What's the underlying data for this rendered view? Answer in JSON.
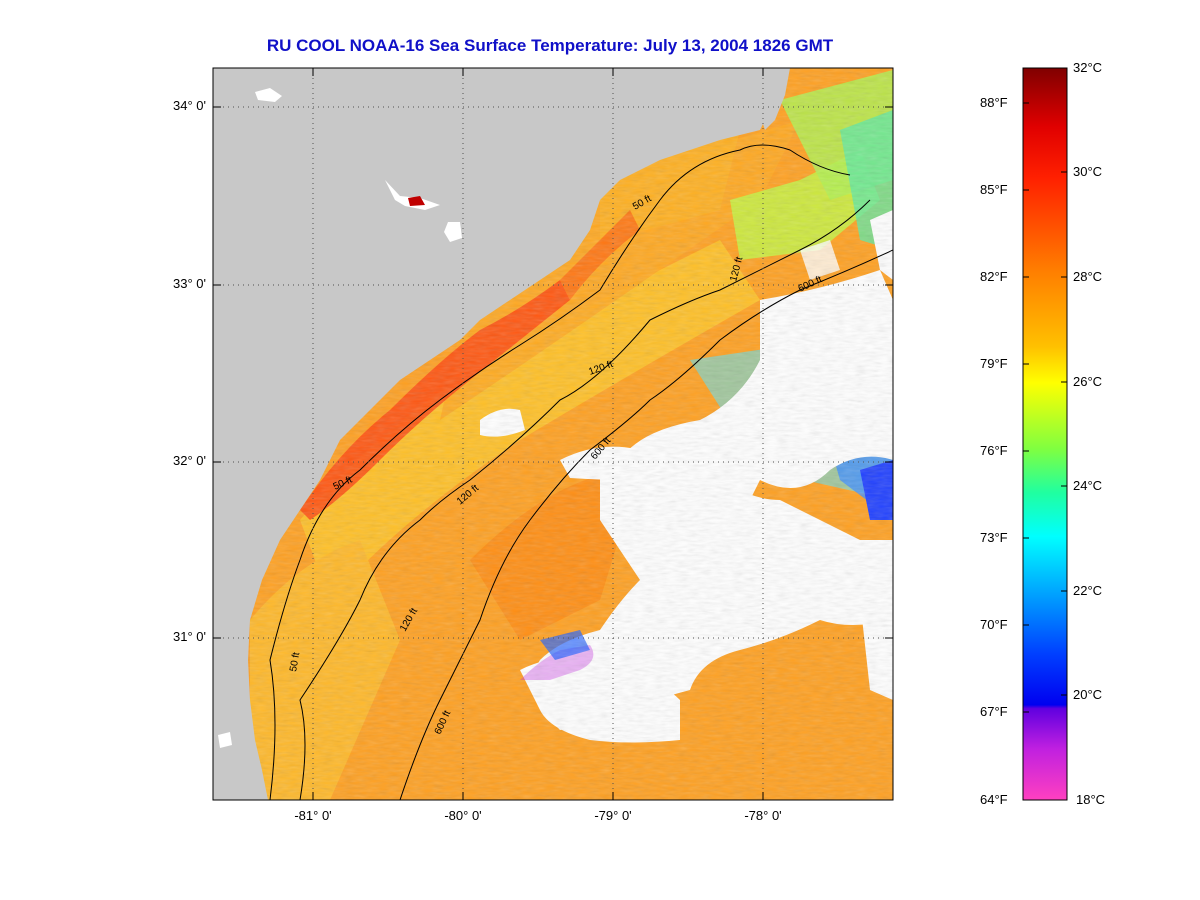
{
  "title": "RU COOL  NOAA-16  Sea Surface Temperature:  July 13, 2004 1826 GMT",
  "map": {
    "lat_ticks": [
      "34° 0'",
      "33° 0'",
      "32° 0'",
      "31° 0'"
    ],
    "lon_ticks": [
      "-81° 0'",
      "-80° 0'",
      "-79° 0'",
      "-78° 0'"
    ],
    "depth_contours": [
      "50 ft",
      "120 ft",
      "600 ft"
    ],
    "colors": {
      "land": "#c8c8c8",
      "cloud": "#ffffff",
      "warm": "#ff8a10",
      "hot": "#ff4e10",
      "mid": "#ffc820",
      "cool": "#a0f040",
      "cold": "#2080ff",
      "contour": "#000000"
    }
  },
  "colorbar": {
    "celsius_labels": [
      "32°C",
      "30°C",
      "28°C",
      "26°C",
      "24°C",
      "22°C",
      "20°C",
      "18°C"
    ],
    "fahrenheit_labels": [
      "88°F",
      "85°F",
      "82°F",
      "79°F",
      "76°F",
      "73°F",
      "70°F",
      "67°F",
      "64°F"
    ],
    "celsius_range": [
      18,
      32
    ]
  }
}
